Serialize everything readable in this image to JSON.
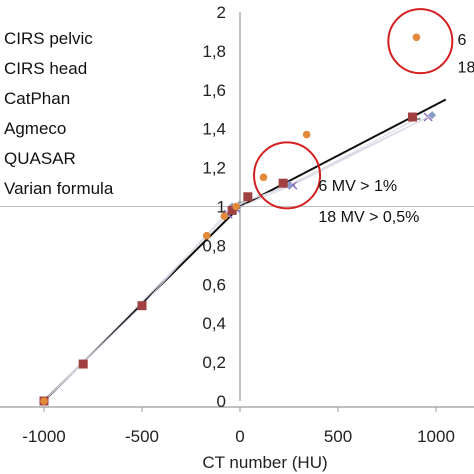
{
  "chart_data": {
    "type": "scatter",
    "title": "",
    "xlabel": "CT number (HU)",
    "ylabel": "",
    "xlim": [
      -1050,
      1100
    ],
    "ylim": [
      0,
      2
    ],
    "x_ticks": [
      -1000,
      -500,
      0,
      500,
      1000
    ],
    "x_tick_labels": [
      "-1000",
      "-500",
      "0",
      "500",
      "1000"
    ],
    "y_ticks": [
      0,
      0.2,
      0.4,
      0.6,
      0.8,
      1,
      1.2,
      1.4,
      1.6,
      1.8,
      2
    ],
    "y_tick_labels": [
      "0",
      "0,2",
      "0,4",
      "0,6",
      "0,8",
      "1",
      "1,2",
      "1,4",
      "1,6",
      "1,8",
      "2"
    ],
    "grid": "horizontal at y = 1",
    "legend": {
      "placement": "top-left",
      "entries": [
        "CIRS pelvic",
        "CIRS head",
        "CatPhan",
        "Agmeco",
        "QUASAR",
        "Varian formula"
      ]
    },
    "colors": {
      "cirs_pelvic": "#8b9cc7",
      "cirs_head": "#a04040",
      "catphan": "#8b8b8b",
      "agmeco": "#e08a3a",
      "quasar": "#8a6ab8",
      "varian": "#111111",
      "circle": "#d42020"
    },
    "series": [
      {
        "name": "CIRS pelvic",
        "marker": "diamond",
        "points": [
          [
            -1000,
            0.0
          ],
          [
            -500,
            0.49
          ],
          [
            -40,
            1.0
          ],
          [
            250,
            1.11
          ],
          [
            980,
            1.47
          ]
        ]
      },
      {
        "name": "CIRS head",
        "marker": "square",
        "points": [
          [
            -1000,
            0.0
          ],
          [
            -800,
            0.19
          ],
          [
            -500,
            0.49
          ],
          [
            -40,
            0.98
          ],
          [
            40,
            1.05
          ],
          [
            220,
            1.12
          ],
          [
            880,
            1.46
          ]
        ]
      },
      {
        "name": "CatPhan",
        "marker": "dash",
        "points": [
          [
            -1000,
            0.0
          ],
          [
            -70,
            0.95
          ],
          [
            10,
            1.02
          ],
          [
            260,
            1.11
          ],
          [
            900,
            1.45
          ]
        ]
      },
      {
        "name": "Agmeco",
        "marker": "circle",
        "points": [
          [
            -1000,
            0.0
          ],
          [
            -170,
            0.85
          ],
          [
            -80,
            0.95
          ],
          [
            -20,
            1.0
          ],
          [
            120,
            1.15
          ],
          [
            340,
            1.37
          ],
          [
            900,
            1.87
          ]
        ]
      },
      {
        "name": "QUASAR",
        "marker": "x",
        "points": [
          [
            -1000,
            0.0
          ],
          [
            -60,
            0.96
          ],
          [
            -20,
            0.99
          ],
          [
            270,
            1.11
          ],
          [
            960,
            1.46
          ]
        ]
      },
      {
        "name": "Varian formula",
        "marker": "line",
        "points": [
          [
            -1000,
            0.0
          ],
          [
            0,
            1.0
          ],
          [
            1050,
            1.55
          ]
        ]
      }
    ],
    "annotations": [
      {
        "text": "6 MV > 1%",
        "x": 400,
        "y": 1.11
      },
      {
        "text": "18 MV > 0,5%",
        "x": 400,
        "y": 0.95
      },
      {
        "text": "6",
        "x": 1110,
        "y": 1.86
      },
      {
        "text": "18",
        "x": 1110,
        "y": 1.72
      }
    ],
    "circles": [
      {
        "cx": 920,
        "cy": 1.85,
        "r": 32
      },
      {
        "cx": 240,
        "cy": 1.16,
        "r": 33
      }
    ]
  }
}
